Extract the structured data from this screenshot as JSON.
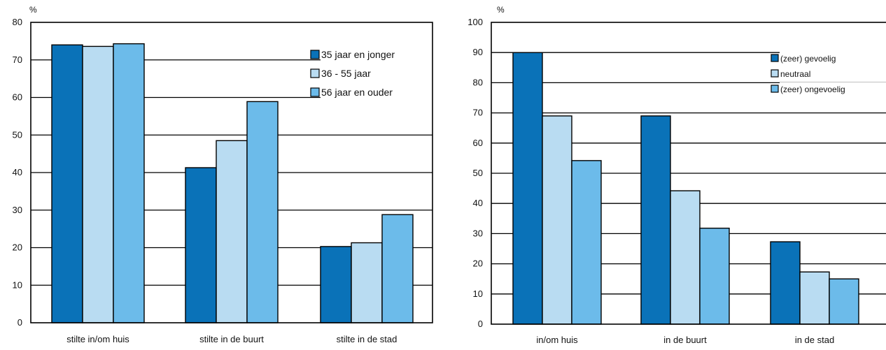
{
  "chart_data": [
    {
      "type": "bar",
      "title": "",
      "ylabel": "%",
      "xlabel": "",
      "ylim": [
        0,
        80
      ],
      "ytick_step": 10,
      "grid": true,
      "legend_position": "top-right",
      "categories": [
        "stilte in/om huis",
        "stilte in de buurt",
        "stilte in de stad"
      ],
      "series": [
        {
          "name": "35 jaar en jonger",
          "color": "#0a72b8",
          "values": [
            74,
            41.3,
            20.3
          ]
        },
        {
          "name": "36 - 55 jaar",
          "color": "#b9dcf2",
          "values": [
            73.6,
            48.5,
            21.3
          ]
        },
        {
          "name": "56 jaar en ouder",
          "color": "#6cbbea",
          "values": [
            74.3,
            58.9,
            28.8
          ]
        }
      ]
    },
    {
      "type": "bar",
      "title": "",
      "ylabel": "%",
      "xlabel": "",
      "ylim": [
        0,
        100
      ],
      "ytick_step": 10,
      "grid": true,
      "legend_position": "top-right",
      "categories": [
        "in/om huis",
        "in de buurt",
        "in de stad"
      ],
      "series": [
        {
          "name": "(zeer) gevoelig",
          "color": "#0a72b8",
          "values": [
            90,
            69,
            27.3
          ]
        },
        {
          "name": "neutraal",
          "color": "#b9dcf2",
          "values": [
            69,
            44.2,
            17.3
          ]
        },
        {
          "name": "(zeer) ongevoelig",
          "color": "#6cbbea",
          "values": [
            54.2,
            31.8,
            15
          ]
        }
      ]
    }
  ]
}
